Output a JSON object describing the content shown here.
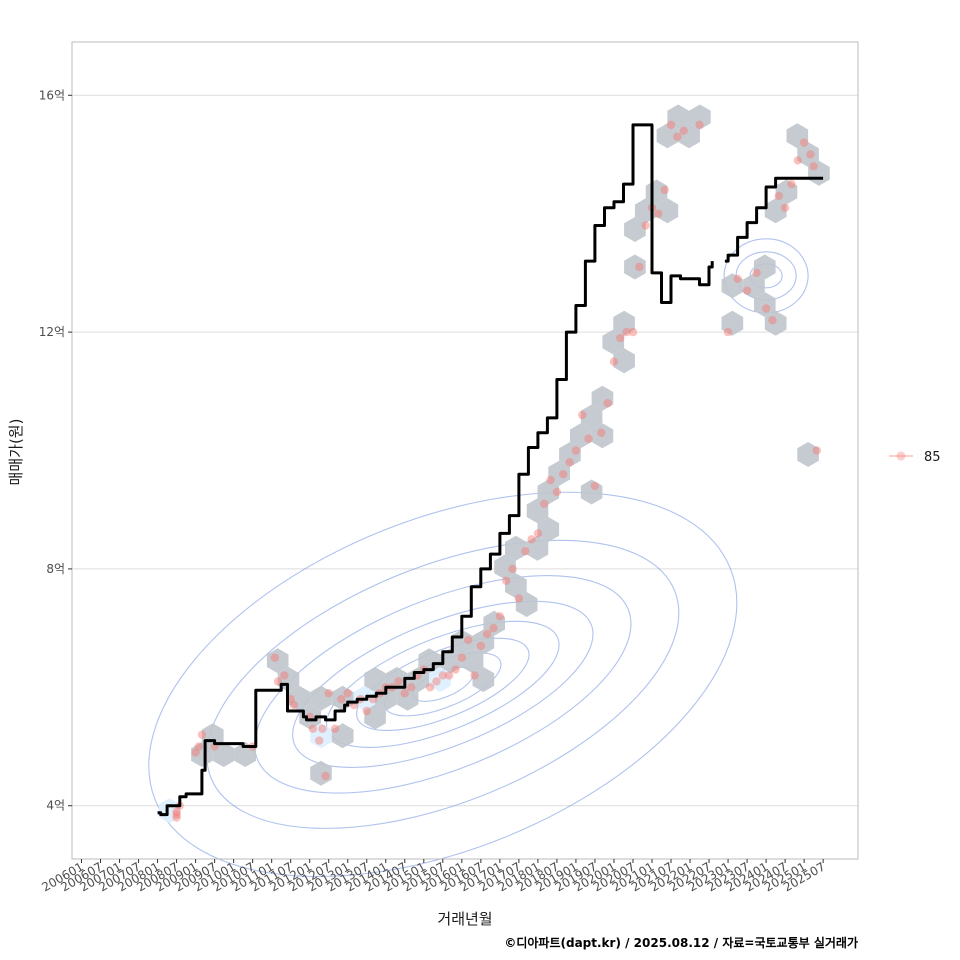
{
  "chart_data": {
    "type": "scatter",
    "xlabel": "거래년월",
    "ylabel": "매매가(원)",
    "caption": "©디아파트(dapt.kr) / 2025.08.12 / 자료=국토교통부 실거래가",
    "y_unit_label": "억",
    "x_tick_labels": [
      "200601",
      "200607",
      "200701",
      "200707",
      "200801",
      "200807",
      "200901",
      "200907",
      "201001",
      "201007",
      "201101",
      "201107",
      "201201",
      "201207",
      "201301",
      "201307",
      "201401",
      "201407",
      "201501",
      "201507",
      "201601",
      "201607",
      "201701",
      "201707",
      "201801",
      "201807",
      "201901",
      "201907",
      "202001",
      "202007",
      "202101",
      "202107",
      "202201",
      "202207",
      "202301",
      "202307",
      "202401",
      "202407",
      "202501",
      "202507"
    ],
    "y_ticks": [
      4,
      8,
      12,
      16
    ],
    "y_tick_labels": [
      "4억",
      "8억",
      "12억",
      "16억"
    ],
    "ylim": [
      3100000000,
      16900000000
    ],
    "xlim": [
      "2005-10",
      "2026-06"
    ],
    "grid": true,
    "legend": {
      "position": "right",
      "entries": [
        {
          "label": "85",
          "color": "#f8766d"
        }
      ]
    },
    "colors": {
      "points": "#f8766d",
      "trend": "#000000",
      "hex": "#bfc5cc",
      "hex_light": "#dceeff",
      "contour": "#6f8fe0",
      "grid": "#dedede",
      "panel_border": "#bbbbbb"
    },
    "series": [
      {
        "role": "trend",
        "x": [
          "2008-01",
          "2008-02",
          "2008-04",
          "2008-07",
          "2008-08",
          "2008-10",
          "2009-01",
          "2009-03",
          "2009-04",
          "2009-07",
          "2010-04",
          "2010-07",
          "2010-08",
          "2010-12",
          "2011-01",
          "2011-04",
          "2011-06",
          "2011-09",
          "2011-11",
          "2011-12",
          "2012-03",
          "2012-06",
          "2012-09",
          "2012-12",
          "2013-01",
          "2013-04",
          "2013-07",
          "2013-10",
          "2014-01",
          "2014-04",
          "2014-07",
          "2014-10",
          "2015-01",
          "2015-04",
          "2015-07",
          "2015-10",
          "2016-01",
          "2016-04",
          "2016-07",
          "2016-10",
          "2017-01",
          "2017-04",
          "2017-07",
          "2017-10",
          "2018-01",
          "2018-04",
          "2018-07",
          "2018-10",
          "2019-01",
          "2019-04",
          "2019-07",
          "2019-10",
          "2020-01",
          "2020-04",
          "2020-07",
          "2020-10",
          "2021-01",
          "2021-04",
          "2021-07",
          "2021-10",
          "2022-01",
          "2022-04",
          "2022-07",
          "2022-08",
          "2022-12",
          "2023-01",
          "2023-04",
          "2023-07",
          "2023-10",
          "2024-01",
          "2024-04",
          "2024-07",
          "2024-10",
          "2025-01",
          "2025-04",
          "2025-07"
        ],
        "y": [
          3880000000,
          3850000000,
          4000000000,
          4000000000,
          4150000000,
          4200000000,
          4200000000,
          4600000000,
          5100000000,
          5050000000,
          5000000000,
          5000000000,
          5950000000,
          5950000000,
          5950000000,
          6050000000,
          5600000000,
          5600000000,
          5500000000,
          5450000000,
          5500000000,
          5450000000,
          5600000000,
          5700000000,
          5750000000,
          5800000000,
          5850000000,
          5900000000,
          6000000000,
          6000000000,
          6150000000,
          6250000000,
          6300000000,
          6400000000,
          6600000000,
          6850000000,
          7200000000,
          7700000000,
          8000000000,
          8250000000,
          8600000000,
          8900000000,
          9600000000,
          10050000000,
          10300000000,
          10550000000,
          11200000000,
          12000000000,
          12450000000,
          13200000000,
          13800000000,
          14100000000,
          14200000000,
          14500000000,
          15500000000,
          15500000000,
          13000000000,
          12500000000,
          12950000000,
          12900000000,
          12900000000,
          12800000000,
          13100000000,
          13200000000,
          13200000000,
          13300000000,
          13600000000,
          13850000000,
          14100000000,
          14450000000,
          14600000000,
          14600000000,
          14600000000,
          14600000000,
          14600000000,
          14600000000
        ]
      },
      {
        "role": "transactions",
        "name": "85",
        "x": [
          "2008-07",
          "2008-07",
          "2008-07",
          "2008-08",
          "2009-01",
          "2009-02",
          "2009-03",
          "2009-07",
          "2010-07",
          "2011-02",
          "2011-03",
          "2011-05",
          "2011-07",
          "2011-08",
          "2012-01",
          "2012-02",
          "2012-04",
          "2012-05",
          "2012-06",
          "2012-07",
          "2012-09",
          "2012-11",
          "2013-01",
          "2013-03",
          "2013-05",
          "2013-07",
          "2013-09",
          "2013-11",
          "2014-01",
          "2014-03",
          "2014-05",
          "2014-07",
          "2014-09",
          "2014-11",
          "2015-01",
          "2015-03",
          "2015-05",
          "2015-07",
          "2015-09",
          "2015-11",
          "2016-01",
          "2016-03",
          "2016-05",
          "2016-07",
          "2016-09",
          "2016-11",
          "2017-01",
          "2017-03",
          "2017-05",
          "2017-07",
          "2017-09",
          "2017-11",
          "2018-01",
          "2018-03",
          "2018-05",
          "2018-07",
          "2018-09",
          "2018-11",
          "2019-01",
          "2019-03",
          "2019-05",
          "2019-07",
          "2019-09",
          "2019-11",
          "2020-01",
          "2020-03",
          "2020-05",
          "2020-07",
          "2020-09",
          "2020-11",
          "2021-01",
          "2021-03",
          "2021-05",
          "2021-07",
          "2021-09",
          "2021-11",
          "2022-04",
          "2023-01",
          "2023-04",
          "2023-07",
          "2023-10",
          "2024-01",
          "2024-03",
          "2024-05",
          "2024-07",
          "2024-09",
          "2024-11",
          "2025-01",
          "2025-03",
          "2025-04",
          "2025-05"
        ],
        "y": [
          3800000000,
          3850000000,
          3900000000,
          4000000000,
          4900000000,
          5000000000,
          5200000000,
          5000000000,
          5000000000,
          6500000000,
          6100000000,
          6200000000,
          5800000000,
          5700000000,
          5500000000,
          5300000000,
          5100000000,
          5300000000,
          4500000000,
          5900000000,
          5300000000,
          5800000000,
          5900000000,
          5700000000,
          5800000000,
          5600000000,
          5800000000,
          5900000000,
          6000000000,
          6000000000,
          6100000000,
          5900000000,
          6000000000,
          6200000000,
          6300000000,
          6000000000,
          6100000000,
          6200000000,
          6200000000,
          6300000000,
          6500000000,
          6800000000,
          6200000000,
          6700000000,
          6900000000,
          7000000000,
          7200000000,
          7800000000,
          8000000000,
          7500000000,
          8300000000,
          8500000000,
          8600000000,
          9100000000,
          9500000000,
          9300000000,
          9600000000,
          9800000000,
          10000000000,
          10600000000,
          10200000000,
          9400000000,
          10300000000,
          10800000000,
          11500000000,
          11900000000,
          12000000000,
          12000000000,
          13100000000,
          13800000000,
          14100000000,
          14000000000,
          14400000000,
          15500000000,
          15300000000,
          15400000000,
          15500000000,
          12000000000,
          12900000000,
          12700000000,
          13000000000,
          12400000000,
          12200000000,
          14300000000,
          14100000000,
          14500000000,
          14900000000,
          15200000000,
          15000000000,
          14800000000,
          10000000000
        ]
      }
    ]
  }
}
